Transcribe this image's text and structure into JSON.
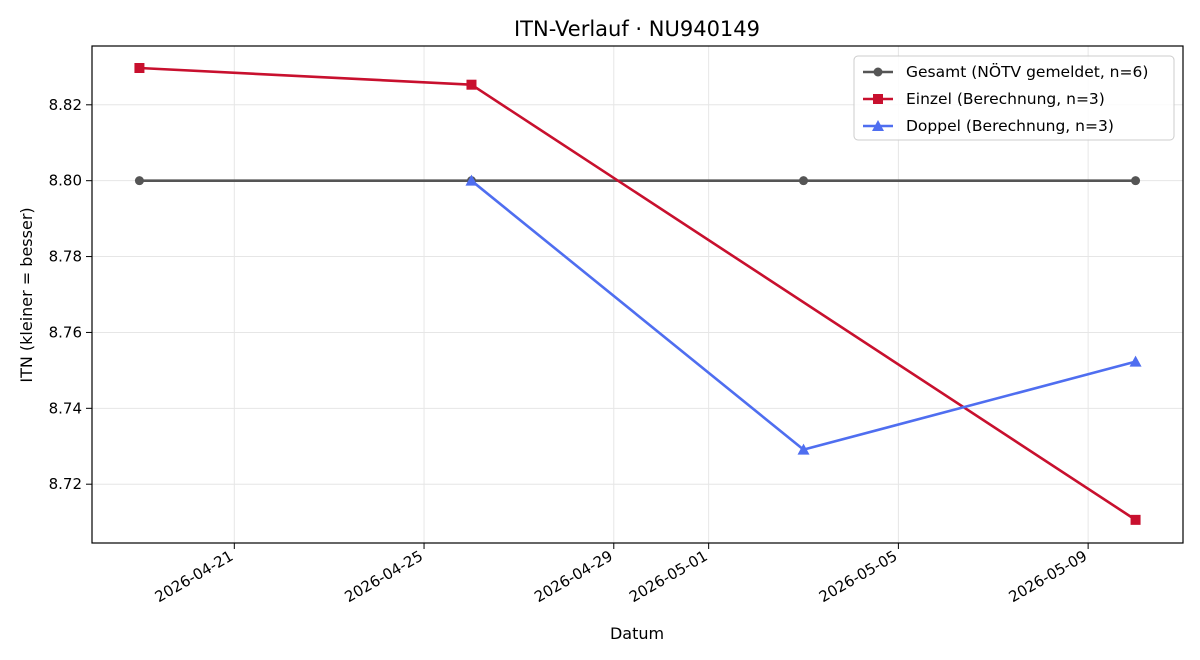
{
  "chart_data": {
    "type": "line",
    "title": "ITN-Verlauf · NU940149",
    "xlabel": "Datum",
    "ylabel": "ITN  (kleiner = besser)",
    "xlim": [
      "2026-04-18",
      "2026-05-11"
    ],
    "ylim": [
      8.7045,
      8.8355
    ],
    "x_ticks": [
      "2026-04-21",
      "2026-04-25",
      "2026-04-29",
      "2026-05-01",
      "2026-05-05",
      "2026-05-09"
    ],
    "y_ticks": [
      8.72,
      8.74,
      8.76,
      8.78,
      8.8,
      8.82
    ],
    "grid": true,
    "legend_position": "top-right",
    "series": [
      {
        "name": "Gesamt (NÖTV gemeldet, n=6)",
        "color": "#555555",
        "marker": "circle",
        "points": [
          {
            "x": "2026-04-19",
            "y": 8.8
          },
          {
            "x": "2026-04-26",
            "y": 8.8
          },
          {
            "x": "2026-05-03",
            "y": 8.8
          },
          {
            "x": "2026-05-10",
            "y": 8.8
          }
        ]
      },
      {
        "name": "Einzel (Berechnung, n=3)",
        "color": "#c8102e",
        "marker": "square",
        "points": [
          {
            "x": "2026-04-19",
            "y": 8.8297
          },
          {
            "x": "2026-04-26",
            "y": 8.8253
          },
          {
            "x": "2026-05-10",
            "y": 8.7106
          }
        ]
      },
      {
        "name": "Doppel (Berechnung, n=3)",
        "color": "#4f6ef0",
        "marker": "triangle",
        "points": [
          {
            "x": "2026-04-26",
            "y": 8.8
          },
          {
            "x": "2026-05-03",
            "y": 8.7291
          },
          {
            "x": "2026-05-10",
            "y": 8.7523
          }
        ]
      }
    ]
  }
}
